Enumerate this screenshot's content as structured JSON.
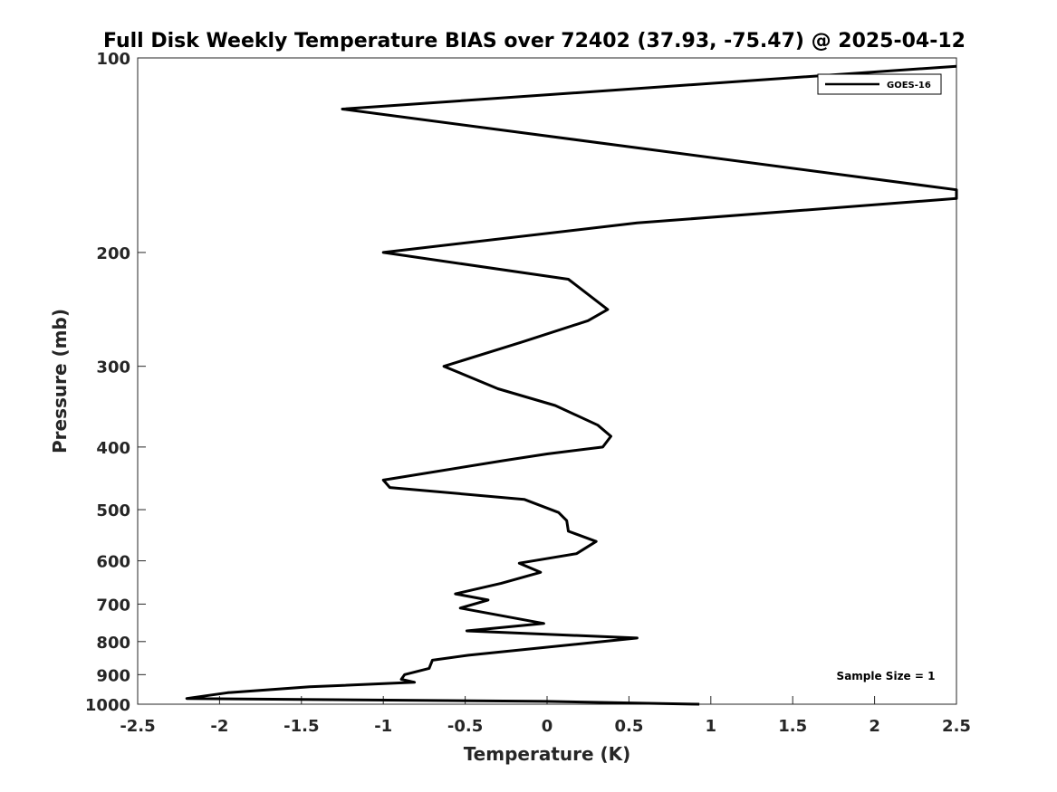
{
  "chart_data": {
    "type": "line",
    "title": "Full Disk Weekly Temperature BIAS over 72402 (37.93, -75.47) @ 2025-04-12",
    "xlabel": "Temperature (K)",
    "ylabel": "Pressure (mb)",
    "xlim": [
      -2.5,
      2.5
    ],
    "ylim": [
      100,
      1000
    ],
    "y_scale": "log",
    "y_reversed": true,
    "grid": false,
    "x_ticks": [
      -2.5,
      -2,
      -1.5,
      -1,
      -0.5,
      0,
      0.5,
      1,
      1.5,
      2,
      2.5
    ],
    "x_tick_labels": [
      "-2.5",
      "-2",
      "-1.5",
      "-1",
      "-0.5",
      "0",
      "0.5",
      "1",
      "1.5",
      "2",
      "2.5"
    ],
    "y_ticks": [
      100,
      200,
      300,
      400,
      500,
      600,
      700,
      800,
      900,
      1000
    ],
    "y_tick_labels": [
      "100",
      "200",
      "300",
      "400",
      "500",
      "600",
      "700",
      "800",
      "900",
      "1000"
    ],
    "legend_position": "top-right",
    "annotation": "Sample Size = 1",
    "line_color": "#000000",
    "series": [
      {
        "name": "GOES-16",
        "points": [
          {
            "x": 2.5,
            "p": 103
          },
          {
            "x": -1.25,
            "p": 120
          },
          {
            "x": 2.5,
            "p": 160
          },
          {
            "x": 2.5,
            "p": 165
          },
          {
            "x": 0.55,
            "p": 180
          },
          {
            "x": -1.0,
            "p": 200
          },
          {
            "x": 0.13,
            "p": 220
          },
          {
            "x": 0.37,
            "p": 245
          },
          {
            "x": 0.25,
            "p": 255
          },
          {
            "x": -0.15,
            "p": 275
          },
          {
            "x": -0.63,
            "p": 300
          },
          {
            "x": -0.3,
            "p": 325
          },
          {
            "x": 0.05,
            "p": 345
          },
          {
            "x": 0.31,
            "p": 370
          },
          {
            "x": 0.39,
            "p": 385
          },
          {
            "x": 0.34,
            "p": 400
          },
          {
            "x": 0.0,
            "p": 410
          },
          {
            "x": -0.27,
            "p": 420
          },
          {
            "x": -1.0,
            "p": 450
          },
          {
            "x": -0.96,
            "p": 462
          },
          {
            "x": -0.14,
            "p": 482
          },
          {
            "x": 0.07,
            "p": 505
          },
          {
            "x": 0.12,
            "p": 520
          },
          {
            "x": 0.13,
            "p": 540
          },
          {
            "x": 0.3,
            "p": 560
          },
          {
            "x": 0.18,
            "p": 585
          },
          {
            "x": -0.17,
            "p": 605
          },
          {
            "x": -0.04,
            "p": 625
          },
          {
            "x": -0.28,
            "p": 650
          },
          {
            "x": -0.56,
            "p": 675
          },
          {
            "x": -0.36,
            "p": 690
          },
          {
            "x": -0.53,
            "p": 710
          },
          {
            "x": -0.02,
            "p": 750
          },
          {
            "x": -0.49,
            "p": 770
          },
          {
            "x": 0.55,
            "p": 790
          },
          {
            "x": -0.48,
            "p": 840
          },
          {
            "x": -0.7,
            "p": 855
          },
          {
            "x": -0.72,
            "p": 880
          },
          {
            "x": -0.87,
            "p": 900
          },
          {
            "x": -0.89,
            "p": 915
          },
          {
            "x": -0.81,
            "p": 925
          },
          {
            "x": -1.45,
            "p": 940
          },
          {
            "x": -1.95,
            "p": 960
          },
          {
            "x": -2.2,
            "p": 980
          },
          {
            "x": 0.0,
            "p": 990
          },
          {
            "x": 0.93,
            "p": 1000
          }
        ]
      }
    ]
  }
}
